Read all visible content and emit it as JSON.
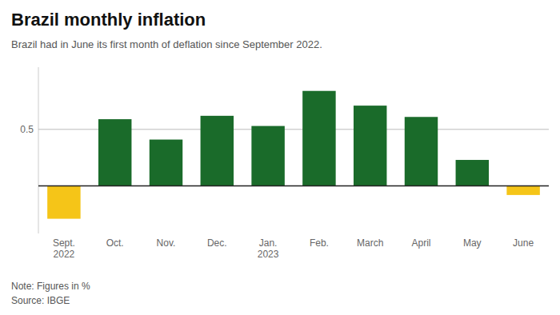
{
  "chart_data": {
    "type": "bar",
    "title": "Brazil monthly inflation",
    "subtitle": "Brazil had in June its first month of deflation since September 2022.",
    "note": "Note: Figures in %\nSource: IBGE",
    "categories": [
      "Sept.\n2022",
      "Oct.",
      "Nov.",
      "Dec.",
      "Jan.\n2023",
      "Feb.",
      "March",
      "April",
      "May",
      "June"
    ],
    "values": [
      -0.29,
      0.59,
      0.41,
      0.62,
      0.53,
      0.84,
      0.71,
      0.61,
      0.23,
      -0.08
    ],
    "colors": [
      "#F5C518",
      "#1A6B2A",
      "#1A6B2A",
      "#1A6B2A",
      "#1A6B2A",
      "#1A6B2A",
      "#1A6B2A",
      "#1A6B2A",
      "#1A6B2A",
      "#F5C518"
    ],
    "ylim": [
      -0.42,
      1.05
    ],
    "yticks": [
      0.5
    ],
    "grid": true
  }
}
